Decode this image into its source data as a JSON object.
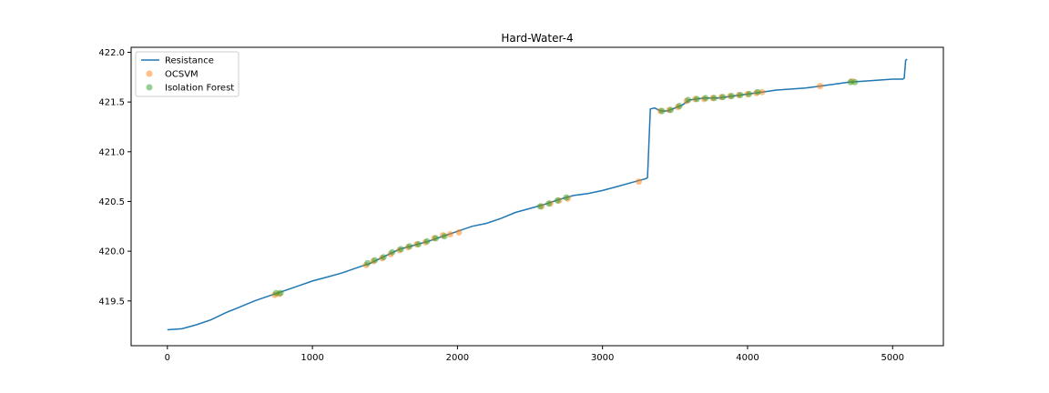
{
  "chart_data": {
    "type": "line",
    "title": "Hard-Water-4",
    "xlabel": "",
    "ylabel": "",
    "xlim": [
      -250,
      5350
    ],
    "ylim": [
      419.05,
      422.05
    ],
    "xticks": [
      0,
      1000,
      2000,
      3000,
      4000,
      5000
    ],
    "xtick_labels": [
      "0",
      "1000",
      "2000",
      "3000",
      "4000",
      "5000"
    ],
    "yticks": [
      419.5,
      420.0,
      420.5,
      421.0,
      421.5,
      422.0
    ],
    "ytick_labels": [
      "419.5",
      "420.0",
      "420.5",
      "421.0",
      "421.5",
      "422.0"
    ],
    "grid": false,
    "legend_position": "top-left",
    "colors": {
      "resistance": "#1f77b4",
      "ocsvm": "#ff7f0e",
      "isolation_forest": "#2ca02c"
    },
    "series": [
      {
        "name": "Resistance",
        "kind": "line",
        "x": [
          0,
          100,
          200,
          300,
          400,
          500,
          600,
          700,
          800,
          900,
          1000,
          1100,
          1200,
          1300,
          1400,
          1500,
          1600,
          1700,
          1800,
          1900,
          2000,
          2100,
          2200,
          2300,
          2400,
          2500,
          2600,
          2700,
          2800,
          2900,
          3000,
          3100,
          3200,
          3300,
          3310,
          3330,
          3360,
          3400,
          3450,
          3500,
          3550,
          3600,
          3700,
          3800,
          3900,
          4000,
          4100,
          4200,
          4300,
          4400,
          4500,
          4600,
          4700,
          4800,
          4900,
          5000,
          5070,
          5080,
          5090,
          5100
        ],
        "y": [
          419.21,
          419.22,
          419.26,
          419.31,
          419.38,
          419.44,
          419.5,
          419.55,
          419.6,
          419.65,
          419.7,
          419.74,
          419.78,
          419.83,
          419.88,
          419.95,
          420.02,
          420.06,
          420.1,
          420.15,
          420.2,
          420.25,
          420.28,
          420.33,
          420.39,
          420.43,
          420.47,
          420.52,
          420.56,
          420.58,
          420.61,
          420.65,
          420.69,
          420.73,
          420.74,
          421.43,
          421.44,
          421.41,
          421.41,
          421.44,
          421.47,
          421.52,
          421.54,
          421.54,
          421.56,
          421.58,
          421.6,
          421.62,
          421.63,
          421.64,
          421.66,
          421.68,
          421.7,
          421.71,
          421.72,
          421.73,
          421.73,
          421.74,
          421.92,
          421.93
        ]
      },
      {
        "name": "OCSVM",
        "kind": "scatter",
        "x": [
          740,
          770,
          1370,
          1420,
          1480,
          1540,
          1600,
          1660,
          1720,
          1780,
          1840,
          1900,
          1950,
          2010,
          2580,
          2640,
          2700,
          2760,
          3250,
          3400,
          3460,
          3520,
          3580,
          3640,
          3700,
          3760,
          3820,
          3880,
          3940,
          4000,
          4060,
          4100,
          4500,
          4720
        ],
        "y": [
          419.56,
          419.57,
          419.86,
          419.9,
          419.93,
          419.97,
          420.01,
          420.04,
          420.07,
          420.09,
          420.13,
          420.16,
          420.17,
          420.19,
          420.45,
          420.48,
          420.51,
          420.53,
          420.7,
          421.41,
          421.42,
          421.45,
          421.51,
          421.53,
          421.53,
          421.54,
          421.55,
          421.56,
          421.57,
          421.58,
          421.59,
          421.6,
          421.66,
          421.71
        ]
      },
      {
        "name": "Isolation Forest",
        "kind": "scatter",
        "x": [
          750,
          780,
          1380,
          1430,
          1490,
          1550,
          1610,
          1670,
          1730,
          1790,
          1850,
          1910,
          2570,
          2630,
          2690,
          2750,
          3410,
          3470,
          3530,
          3590,
          3650,
          3710,
          3770,
          3830,
          3890,
          3950,
          4010,
          4070,
          4710,
          4740
        ],
        "y": [
          419.58,
          419.58,
          419.88,
          419.91,
          419.94,
          419.99,
          420.02,
          420.05,
          420.07,
          420.1,
          420.13,
          420.15,
          420.45,
          420.48,
          420.51,
          420.54,
          421.41,
          421.42,
          421.46,
          421.52,
          421.53,
          421.54,
          421.54,
          421.55,
          421.56,
          421.57,
          421.58,
          421.6,
          421.7,
          421.7
        ]
      }
    ]
  }
}
